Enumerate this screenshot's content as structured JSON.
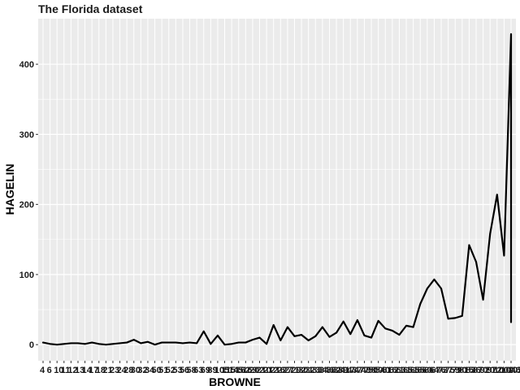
{
  "chart_data": {
    "type": "line",
    "title": "The Florida dataset",
    "xlabel": "BROWNE",
    "ylabel": "HAGELIN",
    "ylim": [
      -23,
      465
    ],
    "y_ticks": [
      0,
      100,
      200,
      300,
      400
    ],
    "grid": true,
    "x_tick_labels": [
      "4",
      "6",
      "10",
      "11",
      "12",
      "13",
      "14",
      "17",
      "18",
      "21",
      "23",
      "24",
      "28",
      "30",
      "32",
      "34",
      "50",
      "51",
      "52",
      "53",
      "56",
      "58",
      "63",
      "69",
      "89",
      "105",
      "115",
      "145",
      "162",
      "169",
      "202",
      "210",
      "212",
      "216",
      "227",
      "271",
      "292",
      "301",
      "323",
      "334",
      "346",
      "382",
      "389",
      "417",
      "437",
      "477",
      "498",
      "500",
      "540",
      "616",
      "621",
      "631",
      "651",
      "655",
      "660",
      "664",
      "676",
      "737",
      "759",
      "790",
      "815",
      "836",
      "870",
      "920",
      "972",
      "1004",
      "1046",
      "1050"
    ],
    "x_tick_display": [
      "4",
      "6",
      "10",
      "11",
      "12",
      "13",
      "14",
      "17",
      "18",
      "21",
      "23",
      "24",
      "28",
      "30",
      "32",
      "34",
      "50",
      "51",
      "52",
      "53",
      "56",
      "58",
      "63",
      "69",
      "89",
      "105",
      "115",
      "145",
      "162",
      "169",
      "202",
      "210",
      "212",
      "216",
      "227",
      "271",
      "292",
      "301",
      "323",
      "334",
      "346",
      "382",
      "389",
      "417",
      "437",
      "477",
      "498",
      "500",
      "540",
      "616",
      "621",
      "631",
      "651",
      "655",
      "660",
      "664",
      "676",
      "737",
      "759",
      "790",
      "815",
      "836",
      "870",
      "920",
      "972",
      "1004",
      "1046",
      "1050"
    ],
    "x_tick_anchor": "start",
    "points": [
      {
        "x": 4,
        "y": 3
      },
      {
        "x": 6,
        "y": 1
      },
      {
        "x": 10,
        "y": 0
      },
      {
        "x": 11,
        "y": 1
      },
      {
        "x": 12,
        "y": 2
      },
      {
        "x": 13,
        "y": 2
      },
      {
        "x": 14,
        "y": 1
      },
      {
        "x": 17,
        "y": 3
      },
      {
        "x": 18,
        "y": 1
      },
      {
        "x": 21,
        "y": 0
      },
      {
        "x": 23,
        "y": 1
      },
      {
        "x": 24,
        "y": 2
      },
      {
        "x": 28,
        "y": 3
      },
      {
        "x": 30,
        "y": 7
      },
      {
        "x": 32,
        "y": 2
      },
      {
        "x": 34,
        "y": 4
      },
      {
        "x": 50,
        "y": 0
      },
      {
        "x": 51,
        "y": 3
      },
      {
        "x": 52,
        "y": 3
      },
      {
        "x": 53,
        "y": 3
      },
      {
        "x": 56,
        "y": 2
      },
      {
        "x": 58,
        "y": 3
      },
      {
        "x": 63,
        "y": 2
      },
      {
        "x": 69,
        "y": 19
      },
      {
        "x": 89,
        "y": 1
      },
      {
        "x": 105,
        "y": 13
      },
      {
        "x": 115,
        "y": 0
      },
      {
        "x": 145,
        "y": 1
      },
      {
        "x": 162,
        "y": 3
      },
      {
        "x": 169,
        "y": 3
      },
      {
        "x": 202,
        "y": 7
      },
      {
        "x": 210,
        "y": 10
      },
      {
        "x": 212,
        "y": 1
      },
      {
        "x": 216,
        "y": 28
      },
      {
        "x": 227,
        "y": 6
      },
      {
        "x": 271,
        "y": 25
      },
      {
        "x": 292,
        "y": 12
      },
      {
        "x": 301,
        "y": 14
      },
      {
        "x": 323,
        "y": 6
      },
      {
        "x": 334,
        "y": 12
      },
      {
        "x": 346,
        "y": 25
      },
      {
        "x": 382,
        "y": 11
      },
      {
        "x": 389,
        "y": 17
      },
      {
        "x": 417,
        "y": 33
      },
      {
        "x": 437,
        "y": 15
      },
      {
        "x": 477,
        "y": 35
      },
      {
        "x": 498,
        "y": 13
      },
      {
        "x": 500,
        "y": 10
      },
      {
        "x": 540,
        "y": 34
      },
      {
        "x": 616,
        "y": 23
      },
      {
        "x": 621,
        "y": 20
      },
      {
        "x": 631,
        "y": 14
      },
      {
        "x": 651,
        "y": 27
      },
      {
        "x": 655,
        "y": 25
      },
      {
        "x": 660,
        "y": 58
      },
      {
        "x": 664,
        "y": 80
      },
      {
        "x": 676,
        "y": 93
      },
      {
        "x": 737,
        "y": 80
      },
      {
        "x": 759,
        "y": 37
      },
      {
        "x": 790,
        "y": 38
      },
      {
        "x": 815,
        "y": 41
      },
      {
        "x": 836,
        "y": 142
      },
      {
        "x": 870,
        "y": 118
      },
      {
        "x": 920,
        "y": 64
      },
      {
        "x": 972,
        "y": 158
      },
      {
        "x": 1004,
        "y": 214
      },
      {
        "x": 1046,
        "y": 127
      },
      {
        "x": 1050,
        "y": 443
      },
      {
        "x": 1050,
        "y": 32
      }
    ],
    "line_color": "#000000",
    "panel_color": "#ebebeb",
    "grid_color": "#ffffff"
  }
}
